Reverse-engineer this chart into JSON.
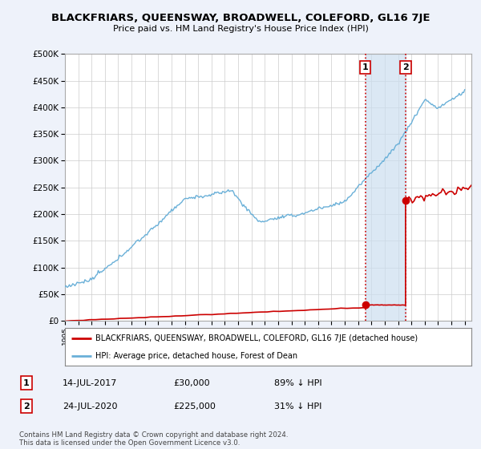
{
  "title": "BLACKFRIARS, QUEENSWAY, BROADWELL, COLEFORD, GL16 7JE",
  "subtitle": "Price paid vs. HM Land Registry's House Price Index (HPI)",
  "ylim": [
    0,
    500000
  ],
  "yticks": [
    0,
    50000,
    100000,
    150000,
    200000,
    250000,
    300000,
    350000,
    400000,
    450000,
    500000
  ],
  "xlim_start": 1995.0,
  "xlim_end": 2025.5,
  "legend_line1": "BLACKFRIARS, QUEENSWAY, BROADWELL, COLEFORD, GL16 7JE (detached house)",
  "legend_line2": "HPI: Average price, detached house, Forest of Dean",
  "sale1_date": "14-JUL-2017",
  "sale1_price": "£30,000",
  "sale1_pct": "89% ↓ HPI",
  "sale1_x": 2017.54,
  "sale1_y": 30000,
  "sale2_date": "24-JUL-2020",
  "sale2_price": "£225,000",
  "sale2_pct": "31% ↓ HPI",
  "sale2_x": 2020.56,
  "sale2_y": 225000,
  "hpi_color": "#6ab0d8",
  "sale_color": "#cc0000",
  "background_color": "#eef2fa",
  "plot_bg_color": "#ffffff",
  "vline_color": "#cc0000",
  "footer": "Contains HM Land Registry data © Crown copyright and database right 2024.\nThis data is licensed under the Open Government Licence v3.0.",
  "label_box_edge": "#cc0000",
  "span_color": "#ccdff0"
}
